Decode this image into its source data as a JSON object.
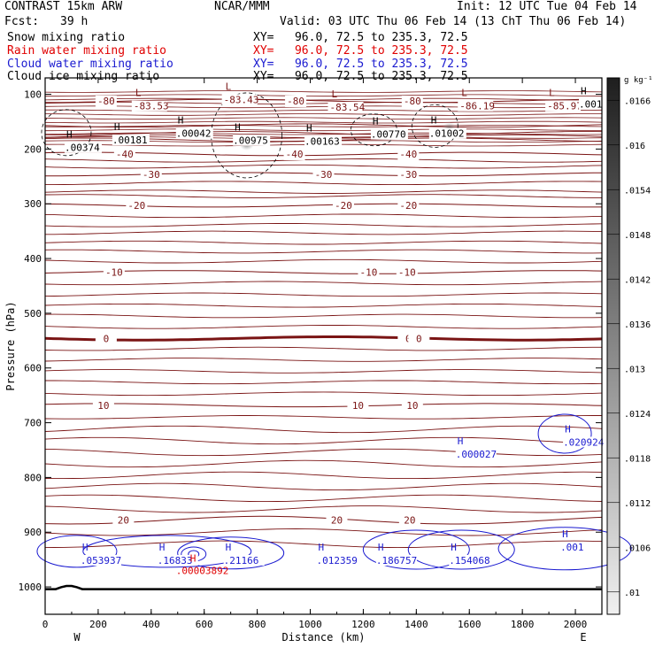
{
  "header": {
    "model": "CONTRAST 15km ARW",
    "org": "NCAR/MMM",
    "init": "Init: 12 UTC Tue 04 Feb 14",
    "fcst_label": "Fcst:",
    "fcst_value": "39 h",
    "valid": "Valid: 03 UTC Thu 06 Feb 14 (13 ChT Thu 06 Feb 14)",
    "fields": [
      {
        "name": "Snow mixing ratio",
        "xy": "XY=   96.0, 72.5 to 235.3, 72.5",
        "color": "#000000"
      },
      {
        "name": "Rain water mixing ratio",
        "xy": "XY=   96.0, 72.5 to 235.3, 72.5",
        "color": "#e00000"
      },
      {
        "name": "Cloud water mixing ratio",
        "xy": "XY=   96.0, 72.5 to 235.3, 72.5",
        "color": "#1a1ad0"
      },
      {
        "name": "Cloud ice mixing ratio",
        "xy": "XY=   96.0, 72.5 to 235.3, 72.5",
        "color": "#000000"
      }
    ]
  },
  "colorbar": {
    "unit": "g kg⁻¹",
    "labels": [
      ".0166",
      ".016",
      ".0154",
      ".0148",
      ".0142",
      ".0136",
      ".013",
      ".0124",
      ".0118",
      ".0112",
      ".0106",
      ".01"
    ],
    "top_color": "#1e1e1e",
    "bottom_color": "#f0f0f0"
  },
  "chart_data": {
    "type": "contour",
    "xlabel": "Distance (km)",
    "ylabel": "Pressure (hPa)",
    "xlim": [
      0,
      2100
    ],
    "ylim": [
      1050,
      70
    ],
    "x_ticks": [
      0,
      200,
      400,
      600,
      800,
      1000,
      1200,
      1400,
      1600,
      1800,
      2000
    ],
    "y_ticks": [
      100,
      200,
      300,
      400,
      500,
      600,
      700,
      800,
      900,
      1000
    ],
    "direction_labels": {
      "west": "W",
      "east": "E"
    },
    "temperature_contours": {
      "color": "#7a1414",
      "levels": [
        {
          "value": -80,
          "pressure": 112,
          "labels": [
            {
              "x": 230,
              "text": "-80"
            },
            {
              "x": 945,
              "text": "-80"
            },
            {
              "x": 1385,
              "text": "-80"
            }
          ]
        },
        {
          "value": -40,
          "pressure": 209,
          "labels": [
            {
              "x": 300,
              "text": "-40"
            },
            {
              "x": 940,
              "text": "-40"
            },
            {
              "x": 1370,
              "text": "-40"
            }
          ]
        },
        {
          "value": -30,
          "pressure": 246,
          "labels": [
            {
              "x": 400,
              "text": "-30"
            },
            {
              "x": 1050,
              "text": "-30"
            },
            {
              "x": 1370,
              "text": "-30"
            }
          ]
        },
        {
          "value": -20,
          "pressure": 303,
          "labels": [
            {
              "x": 345,
              "text": "-20"
            },
            {
              "x": 1125,
              "text": "-20"
            },
            {
              "x": 1370,
              "text": "-20"
            }
          ]
        },
        {
          "value": -10,
          "pressure": 425,
          "labels": [
            {
              "x": 260,
              "text": "-10"
            },
            {
              "x": 1220,
              "text": "-10"
            },
            {
              "x": 1365,
              "text": "-10"
            }
          ]
        },
        {
          "value": 0,
          "pressure": 546,
          "labels": [
            {
              "x": 230,
              "text": "0"
            },
            {
              "x": 1370,
              "text": "0"
            },
            {
              "x": 1410,
              "text": "0"
            }
          ]
        },
        {
          "value": 10,
          "pressure": 668,
          "labels": [
            {
              "x": 220,
              "text": "10"
            },
            {
              "x": 1180,
              "text": "10"
            },
            {
              "x": 1385,
              "text": "10"
            }
          ]
        },
        {
          "value": 20,
          "pressure": 878,
          "labels": [
            {
              "x": 295,
              "text": "20"
            },
            {
              "x": 1100,
              "text": "20"
            },
            {
              "x": 1375,
              "text": "20"
            }
          ]
        }
      ]
    },
    "lows": [
      {
        "x": 360,
        "pressure": 110,
        "value": "-83.53"
      },
      {
        "x": 700,
        "pressure": 98,
        "value": "-83.43"
      },
      {
        "x": 1100,
        "pressure": 112,
        "value": "-83.54"
      },
      {
        "x": 1590,
        "pressure": 110,
        "value": "-86.19"
      },
      {
        "x": 1920,
        "pressure": 110,
        "value": "-85.97"
      }
    ],
    "ice_highs": [
      {
        "x": 80,
        "pressure": 186,
        "value": ".00374"
      },
      {
        "x": 260,
        "pressure": 172,
        "value": ".00181"
      },
      {
        "x": 500,
        "pressure": 160,
        "value": ".00042"
      },
      {
        "x": 715,
        "pressure": 173,
        "value": ".00975"
      },
      {
        "x": 985,
        "pressure": 174,
        "value": ".00163"
      },
      {
        "x": 1235,
        "pressure": 161,
        "value": ".00770"
      },
      {
        "x": 1455,
        "pressure": 160,
        "value": ".01002"
      },
      {
        "x": 2020,
        "pressure": 106,
        "value": ".001"
      }
    ],
    "snow_maxima": [
      {
        "x": 760,
        "pressure": 188
      },
      {
        "x": 1525,
        "pressure": 166
      }
    ],
    "cloud_water_highs": [
      {
        "x": 140,
        "pressure": 940,
        "value": ".053937"
      },
      {
        "x": 430,
        "pressure": 940,
        "value": ".16833"
      },
      {
        "x": 680,
        "pressure": 940,
        "value": ".21166"
      },
      {
        "x": 1030,
        "pressure": 940,
        "value": ".012359"
      },
      {
        "x": 1255,
        "pressure": 940,
        "value": ".186757"
      },
      {
        "x": 1530,
        "pressure": 940,
        "value": ".154068"
      },
      {
        "x": 1555,
        "pressure": 746,
        "value": ".000027"
      },
      {
        "x": 1960,
        "pressure": 724,
        "value": ".020924"
      },
      {
        "x": 1950,
        "pressure": 916,
        "value": ".001"
      }
    ],
    "rain_highs": [
      {
        "x": 560,
        "pressure": 957,
        "value": ".00003892"
      }
    ],
    "surface": {
      "pressure": 1004
    }
  }
}
